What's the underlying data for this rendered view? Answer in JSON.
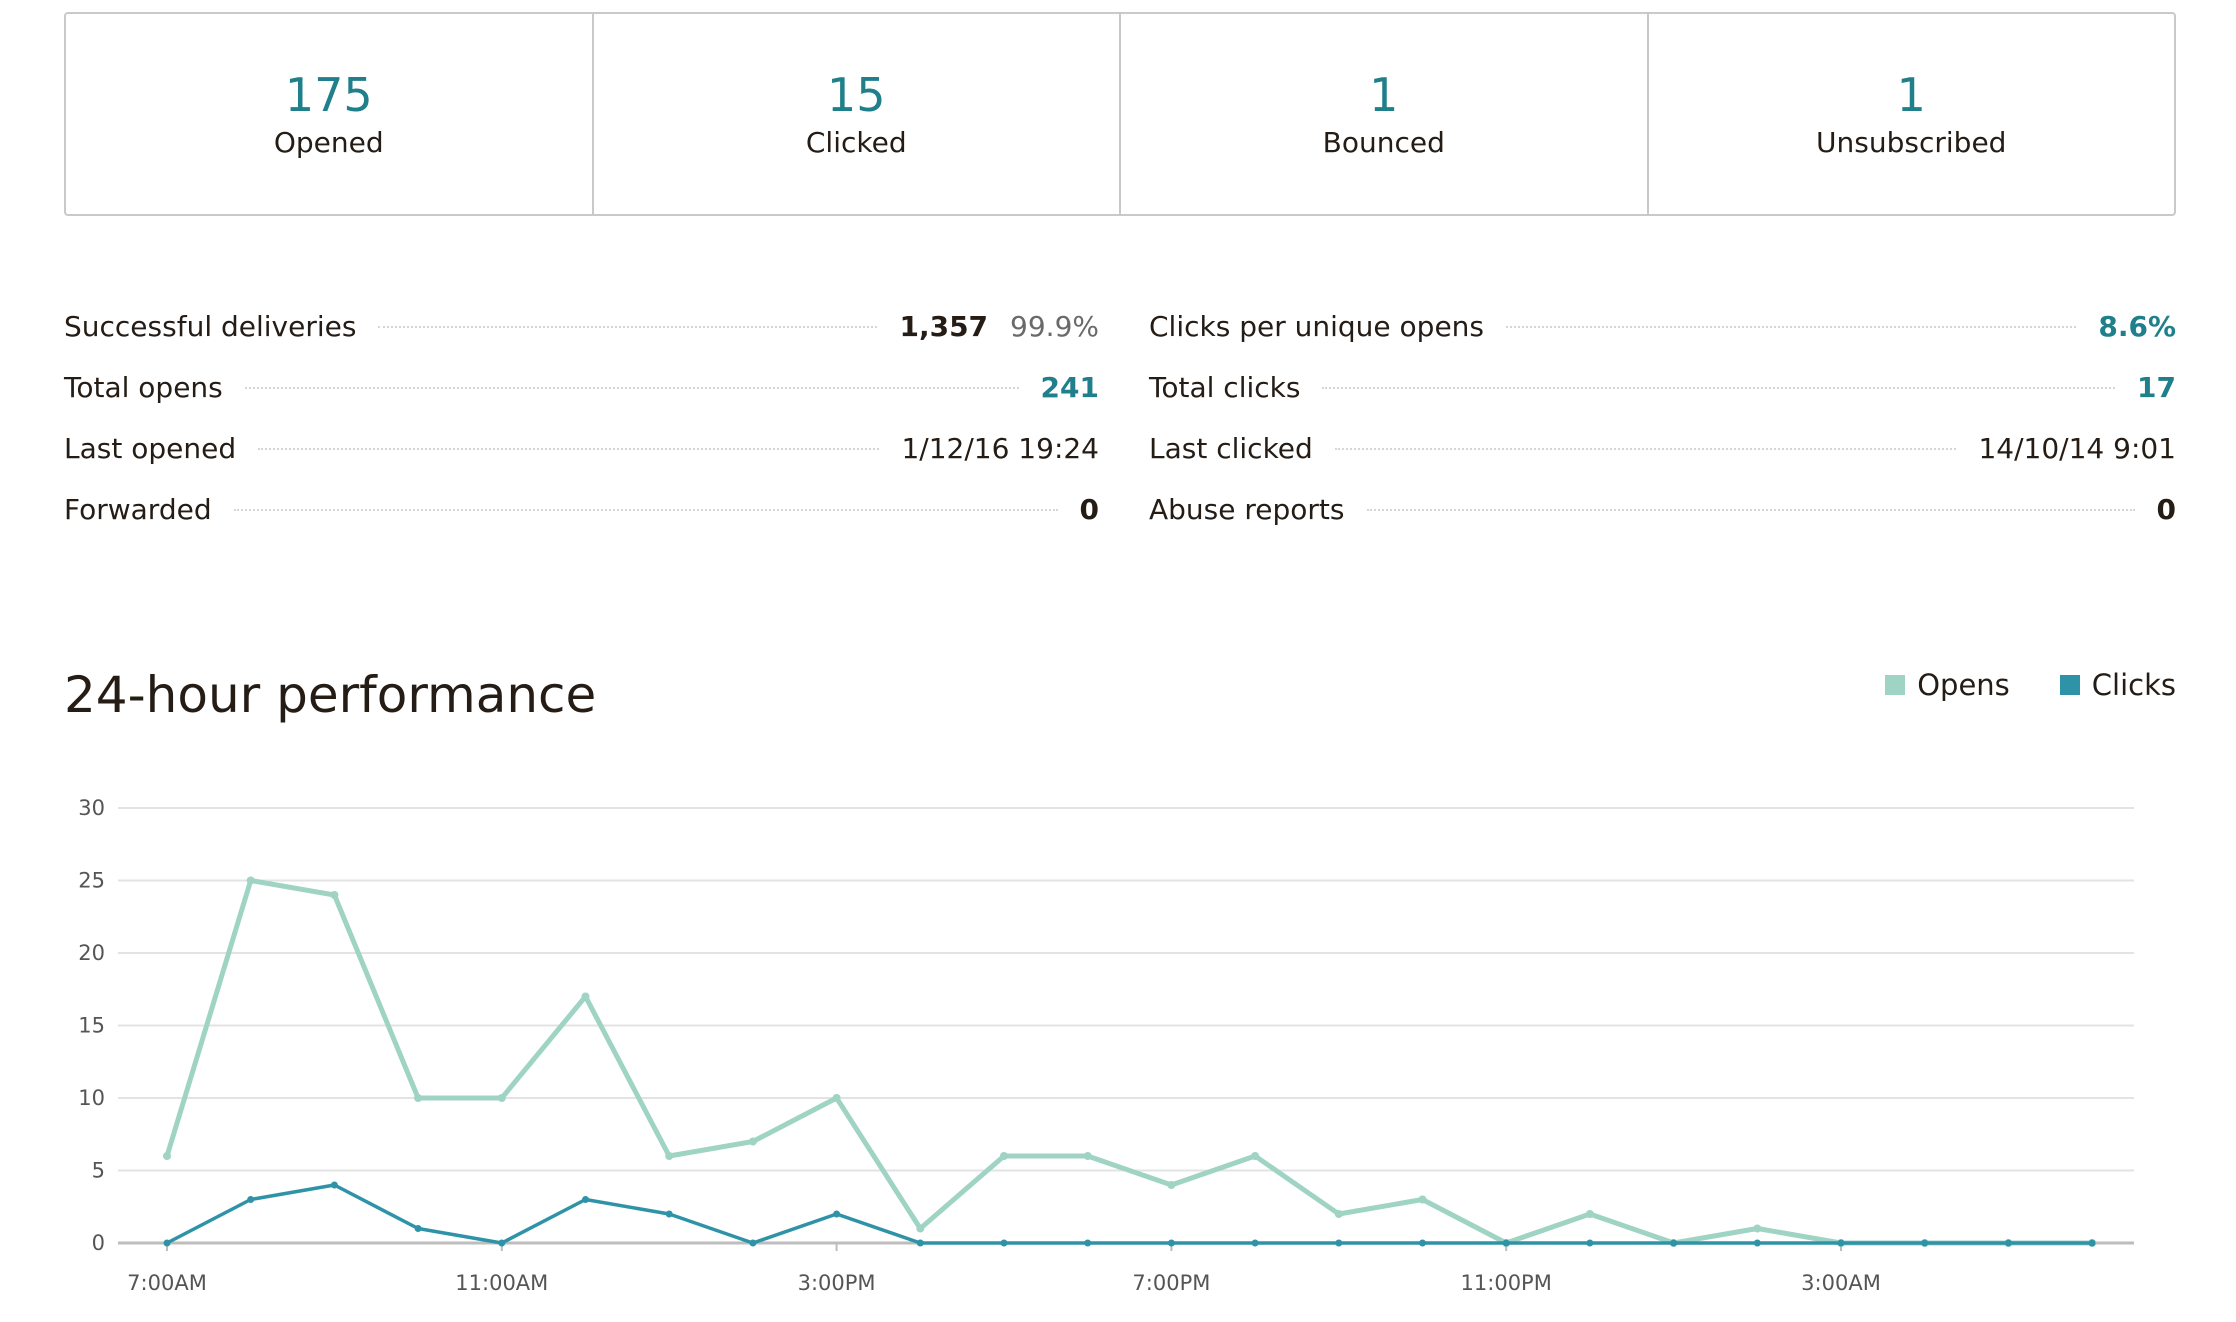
{
  "summary": [
    {
      "value": "175",
      "label": "Opened"
    },
    {
      "value": "15",
      "label": "Clicked"
    },
    {
      "value": "1",
      "label": "Bounced"
    },
    {
      "value": "1",
      "label": "Unsubscribed"
    }
  ],
  "details_left": [
    {
      "label": "Successful deliveries",
      "value": "1,357",
      "secondary": "99.9%"
    },
    {
      "label": "Total opens",
      "value": "241"
    },
    {
      "label": "Last opened",
      "value": "1/12/16 19:24"
    },
    {
      "label": "Forwarded",
      "value": "0"
    }
  ],
  "details_right": [
    {
      "label": "Clicks per unique opens",
      "value": "8.6%"
    },
    {
      "label": "Total clicks",
      "value": "17"
    },
    {
      "label": "Last clicked",
      "value": "14/10/14 9:01"
    },
    {
      "label": "Abuse reports",
      "value": "0"
    }
  ],
  "colors": {
    "opens": "#9fd3c4",
    "clicks": "#2f93a8",
    "accent": "#1f7f8a",
    "grid": "#e3e3e3"
  },
  "chart_data": {
    "type": "line",
    "title": "24-hour performance",
    "x": [
      "7:00AM",
      "8:00AM",
      "9:00AM",
      "10:00AM",
      "11:00AM",
      "12:00PM",
      "1:00PM",
      "2:00PM",
      "3:00PM",
      "4:00PM",
      "5:00PM",
      "6:00PM",
      "7:00PM",
      "8:00PM",
      "9:00PM",
      "10:00PM",
      "11:00PM",
      "12:00AM",
      "1:00AM",
      "2:00AM",
      "3:00AM",
      "4:00AM",
      "5:00AM",
      "6:00AM"
    ],
    "x_tick_labels": [
      "7:00AM",
      "",
      "",
      "",
      "11:00AM",
      "",
      "",
      "",
      "3:00PM",
      "",
      "",
      "",
      "7:00PM",
      "",
      "",
      "",
      "11:00PM",
      "",
      "",
      "",
      "3:00AM",
      "",
      "",
      ""
    ],
    "ylim": [
      0,
      30
    ],
    "y_ticks": [
      0,
      5,
      10,
      15,
      20,
      25,
      30
    ],
    "grid": true,
    "legend_position": "top-right",
    "series": [
      {
        "name": "Opens",
        "values": [
          6,
          25,
          24,
          10,
          10,
          17,
          6,
          7,
          10,
          1,
          6,
          6,
          4,
          6,
          2,
          3,
          0,
          2,
          0,
          1,
          0,
          0,
          0,
          0
        ]
      },
      {
        "name": "Clicks",
        "values": [
          0,
          3,
          4,
          1,
          0,
          3,
          2,
          0,
          2,
          0,
          0,
          0,
          0,
          0,
          0,
          0,
          0,
          0,
          0,
          0,
          0,
          0,
          0,
          0
        ]
      }
    ]
  }
}
